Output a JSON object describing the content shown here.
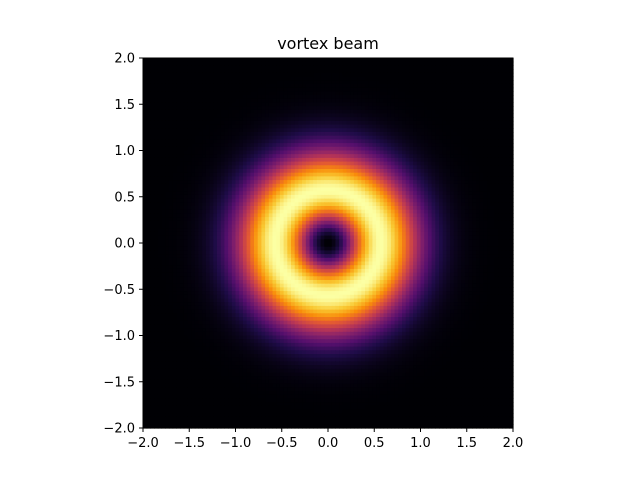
{
  "chart_data": {
    "type": "heatmap",
    "title": "vortex beam",
    "xlabel": "",
    "ylabel": "",
    "xlim": [
      -2.0,
      2.0
    ],
    "ylim": [
      -2.0,
      2.0
    ],
    "x_ticks": [
      -2.0,
      -1.5,
      -1.0,
      -0.5,
      0.0,
      0.5,
      1.0,
      1.5,
      2.0
    ],
    "y_ticks": [
      -2.0,
      -1.5,
      -1.0,
      -0.5,
      0.0,
      0.5,
      1.0,
      1.5,
      2.0
    ],
    "x_tick_labels": [
      "−2.0",
      "−1.5",
      "−1.0",
      "−0.5",
      "0.0",
      "0.5",
      "1.0",
      "1.5",
      "2.0"
    ],
    "y_tick_labels": [
      "−2.0",
      "−1.5",
      "−1.0",
      "−0.5",
      "0.0",
      "0.5",
      "1.0",
      "1.5",
      "2.0"
    ],
    "colormap": "inferno",
    "field": {
      "description": "intensity r^2 * exp(-r^2 / 0.32), normalized",
      "ring_radius": 0.57,
      "grid_resolution": 100
    },
    "grid": false,
    "legend": "none"
  }
}
